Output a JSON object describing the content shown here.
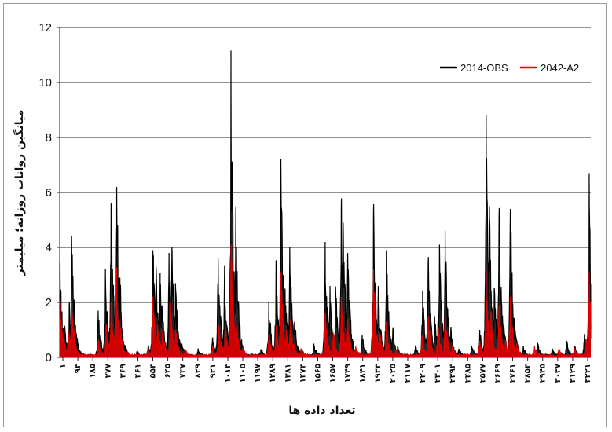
{
  "chart_data": {
    "type": "line",
    "title": "",
    "ylabel": "میانگین رواناب روزانه؛ میلیمتر",
    "xlabel": "تعداد داده ها",
    "ylim": [
      0,
      12
    ],
    "yticks": [
      0,
      2,
      4,
      6,
      8,
      10,
      12
    ],
    "grid": "horizontal",
    "legend_position": "top-right",
    "x_tick_labels": [
      "۱",
      "۹۳",
      "۱۸۵",
      "۲۷۷",
      "۳۶۹",
      "۴۶۱",
      "۵۵۳",
      "۶۴۵",
      "۷۳۷",
      "۸۲۹",
      "۹۲۱",
      "۱۰۱۳",
      "۱۱۰۵",
      "۱۱۹۷",
      "۱۲۸۹",
      "۱۳۸۱",
      "۱۴۷۳",
      "۱۵۶۵",
      "۱۶۵۷",
      "۱۷۴۹",
      "۱۸۴۱",
      "۱۹۳۳",
      "۲۰۲۵",
      "۲۱۱۷",
      "۲۲۰۹",
      "۲۳۰۱",
      "۲۳۹۳",
      "۲۴۸۵",
      "۲۵۷۷",
      "۲۶۶۹",
      "۲۷۶۱",
      "۲۸۵۳",
      "۲۹۴۵",
      "۳۰۳۷",
      "۳۱۲۹",
      "۳۲۲۱"
    ],
    "x_range": [
      1,
      3300
    ],
    "series": [
      {
        "name": "2014-OBS",
        "color": "#000000",
        "peaks": [
          [
            1,
            3.5
          ],
          [
            10,
            1.3
          ],
          [
            30,
            1.1
          ],
          [
            60,
            1.9
          ],
          [
            75,
            4.4
          ],
          [
            90,
            2.1
          ],
          [
            110,
            0.3
          ],
          [
            150,
            0.1
          ],
          [
            240,
            1.7
          ],
          [
            285,
            3.0
          ],
          [
            320,
            5.6
          ],
          [
            335,
            2.3
          ],
          [
            355,
            6.2
          ],
          [
            375,
            2.9
          ],
          [
            405,
            0.3
          ],
          [
            480,
            0.2
          ],
          [
            550,
            0.4
          ],
          [
            580,
            3.9
          ],
          [
            600,
            3.3
          ],
          [
            625,
            2.7
          ],
          [
            640,
            1.9
          ],
          [
            680,
            3.8
          ],
          [
            698,
            4.0
          ],
          [
            720,
            2.7
          ],
          [
            760,
            0.5
          ],
          [
            860,
            0.3
          ],
          [
            950,
            0.7
          ],
          [
            985,
            3.6
          ],
          [
            1025,
            2.9
          ],
          [
            1065,
            10.0
          ],
          [
            1095,
            5.2
          ],
          [
            1130,
            0.3
          ],
          [
            1250,
            0.3
          ],
          [
            1300,
            2.0
          ],
          [
            1345,
            3.3
          ],
          [
            1375,
            7.2
          ],
          [
            1400,
            2.5
          ],
          [
            1430,
            4.0
          ],
          [
            1460,
            1.3
          ],
          [
            1500,
            0.3
          ],
          [
            1580,
            0.5
          ],
          [
            1650,
            4.2
          ],
          [
            1680,
            2.6
          ],
          [
            1715,
            2.5
          ],
          [
            1750,
            5.4
          ],
          [
            1762,
            4.9
          ],
          [
            1790,
            3.8
          ],
          [
            1820,
            0.5
          ],
          [
            1880,
            0.8
          ],
          [
            1950,
            5.2
          ],
          [
            1980,
            2.6
          ],
          [
            2030,
            3.9
          ],
          [
            2070,
            1.0
          ],
          [
            2100,
            0.4
          ],
          [
            2210,
            0.4
          ],
          [
            2255,
            2.4
          ],
          [
            2290,
            3.5
          ],
          [
            2330,
            1.5
          ],
          [
            2360,
            4.1
          ],
          [
            2395,
            4.6
          ],
          [
            2430,
            1.0
          ],
          [
            2480,
            0.3
          ],
          [
            2560,
            0.4
          ],
          [
            2610,
            1.0
          ],
          [
            2650,
            8.8
          ],
          [
            2670,
            5.5
          ],
          [
            2700,
            2.5
          ],
          [
            2730,
            5.2
          ],
          [
            2760,
            1.2
          ],
          [
            2800,
            5.4
          ],
          [
            2830,
            1.0
          ],
          [
            2880,
            0.4
          ],
          [
            2970,
            0.5
          ],
          [
            3060,
            0.3
          ],
          [
            3150,
            0.6
          ],
          [
            3200,
            0.4
          ],
          [
            3260,
            0.8
          ],
          [
            3290,
            6.7
          ],
          [
            3300,
            1.0
          ]
        ]
      },
      {
        "name": "2042-A2",
        "color": "#e00000",
        "peaks": [
          [
            1,
            2.3
          ],
          [
            20,
            0.9
          ],
          [
            55,
            1.0
          ],
          [
            75,
            2.1
          ],
          [
            100,
            0.3
          ],
          [
            160,
            0.1
          ],
          [
            240,
            0.6
          ],
          [
            290,
            1.2
          ],
          [
            320,
            2.0
          ],
          [
            355,
            3.0
          ],
          [
            380,
            1.0
          ],
          [
            420,
            0.2
          ],
          [
            550,
            0.3
          ],
          [
            580,
            2.2
          ],
          [
            610,
            1.2
          ],
          [
            640,
            1.0
          ],
          [
            690,
            2.0
          ],
          [
            720,
            1.0
          ],
          [
            780,
            0.3
          ],
          [
            950,
            0.4
          ],
          [
            990,
            1.1
          ],
          [
            1030,
            1.2
          ],
          [
            1065,
            4.1
          ],
          [
            1095,
            1.6
          ],
          [
            1140,
            0.3
          ],
          [
            1300,
            0.8
          ],
          [
            1345,
            1.1
          ],
          [
            1375,
            3.1
          ],
          [
            1410,
            1.0
          ],
          [
            1435,
            1.4
          ],
          [
            1500,
            0.3
          ],
          [
            1650,
            1.6
          ],
          [
            1700,
            0.9
          ],
          [
            1750,
            2.2
          ],
          [
            1790,
            1.4
          ],
          [
            1840,
            0.4
          ],
          [
            1950,
            3.2
          ],
          [
            1990,
            0.9
          ],
          [
            2030,
            1.3
          ],
          [
            2090,
            0.3
          ],
          [
            2250,
            0.8
          ],
          [
            2290,
            1.5
          ],
          [
            2350,
            1.3
          ],
          [
            2395,
            1.6
          ],
          [
            2440,
            0.4
          ],
          [
            2610,
            0.6
          ],
          [
            2650,
            3.2
          ],
          [
            2680,
            1.6
          ],
          [
            2730,
            1.9
          ],
          [
            2770,
            0.6
          ],
          [
            2800,
            2.2
          ],
          [
            2840,
            0.5
          ],
          [
            2950,
            0.4
          ],
          [
            3100,
            0.3
          ],
          [
            3200,
            0.3
          ],
          [
            3270,
            0.6
          ],
          [
            3290,
            3.1
          ],
          [
            3300,
            0.7
          ]
        ]
      }
    ]
  }
}
